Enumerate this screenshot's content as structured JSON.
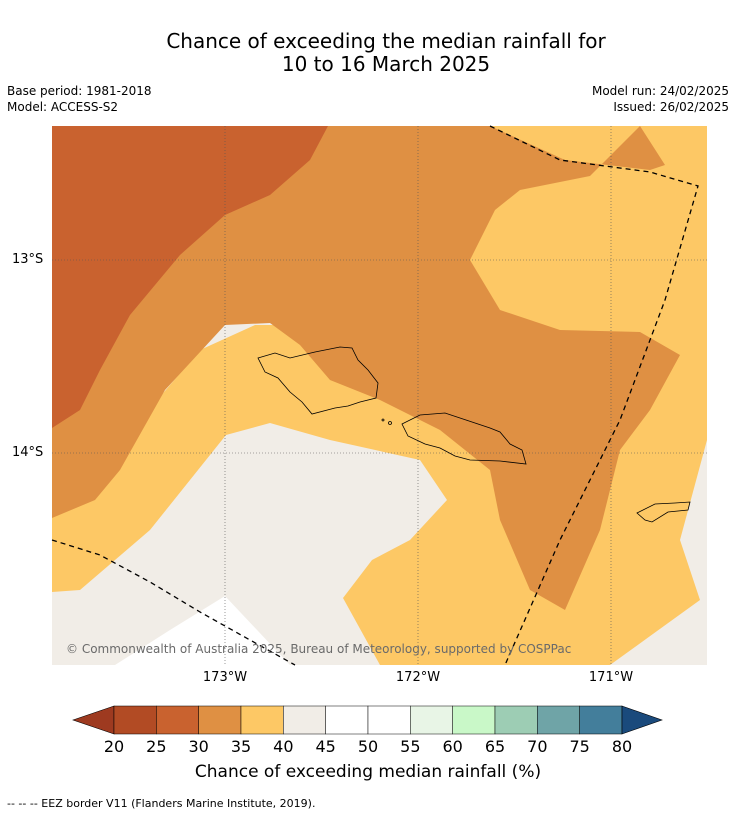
{
  "title_line1": "Chance of exceeding the median rainfall for",
  "title_line2": "10 to 16 March 2025",
  "base_period": "Base period: 1981-2018",
  "model": "Model: ACCESS-S2",
  "model_run": "Model run: 24/02/2025",
  "issued": "Issued: 26/02/2025",
  "lat_labels": [
    "13°S",
    "14°S"
  ],
  "lon_labels": [
    "173°W",
    "172°W",
    "171°W"
  ],
  "copyright": "© Commonwealth of Australia 2025, Bureau of Meteorology, supported by COSPPac",
  "colorbar": {
    "ticks": [
      "20",
      "25",
      "30",
      "35",
      "40",
      "45",
      "50",
      "55",
      "60",
      "65",
      "70",
      "75",
      "80"
    ],
    "colors": [
      "#b24b24",
      "#c9622f",
      "#df9043",
      "#fdc865",
      "#f1ede7",
      "#ffffff",
      "#ffffff",
      "#e8f5e6",
      "#c9f8c8",
      "#9dcdb4",
      "#6fa4a7",
      "#437e9b",
      "#1d4e80"
    ],
    "under_color": "#9e3a20",
    "over_color": "#1a4a7c",
    "title": "Chance of exceeding median rainfall (%)"
  },
  "footer": "--  --  -- EEZ border V11 (Flanders Marine Institute, 2019)."
}
